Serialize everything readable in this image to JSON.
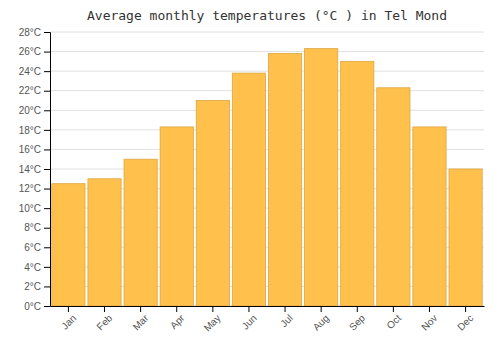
{
  "chart_data": {
    "type": "bar",
    "title": "Average monthly temperatures (°C ) in Tel Mond",
    "categories": [
      "Jan",
      "Feb",
      "Mar",
      "Apr",
      "May",
      "Jun",
      "Jul",
      "Aug",
      "Sep",
      "Oct",
      "Nov",
      "Dec"
    ],
    "values": [
      12.5,
      13.0,
      15.0,
      18.3,
      21.0,
      23.8,
      25.8,
      26.3,
      25.0,
      22.3,
      18.3,
      14.0
    ],
    "color": "#FFC04C",
    "ylim": [
      0,
      28
    ],
    "yticks": [
      {
        "value": 0,
        "label": "0°C"
      },
      {
        "value": 2,
        "label": "2°C"
      },
      {
        "value": 4,
        "label": "4°C"
      },
      {
        "value": 6,
        "label": "6°C"
      },
      {
        "value": 8,
        "label": "8°C"
      },
      {
        "value": 10,
        "label": "10°C"
      },
      {
        "value": 12,
        "label": "12°C"
      },
      {
        "value": 14,
        "label": "14°C"
      },
      {
        "value": 16,
        "label": "16°C"
      },
      {
        "value": 18,
        "label": "18°C"
      },
      {
        "value": 20,
        "label": "20°C"
      },
      {
        "value": 22,
        "label": "22°C"
      },
      {
        "value": 24,
        "label": "24°C"
      },
      {
        "value": 26,
        "label": "26°C"
      },
      {
        "value": 28,
        "label": "28°C"
      }
    ],
    "grid": true
  }
}
